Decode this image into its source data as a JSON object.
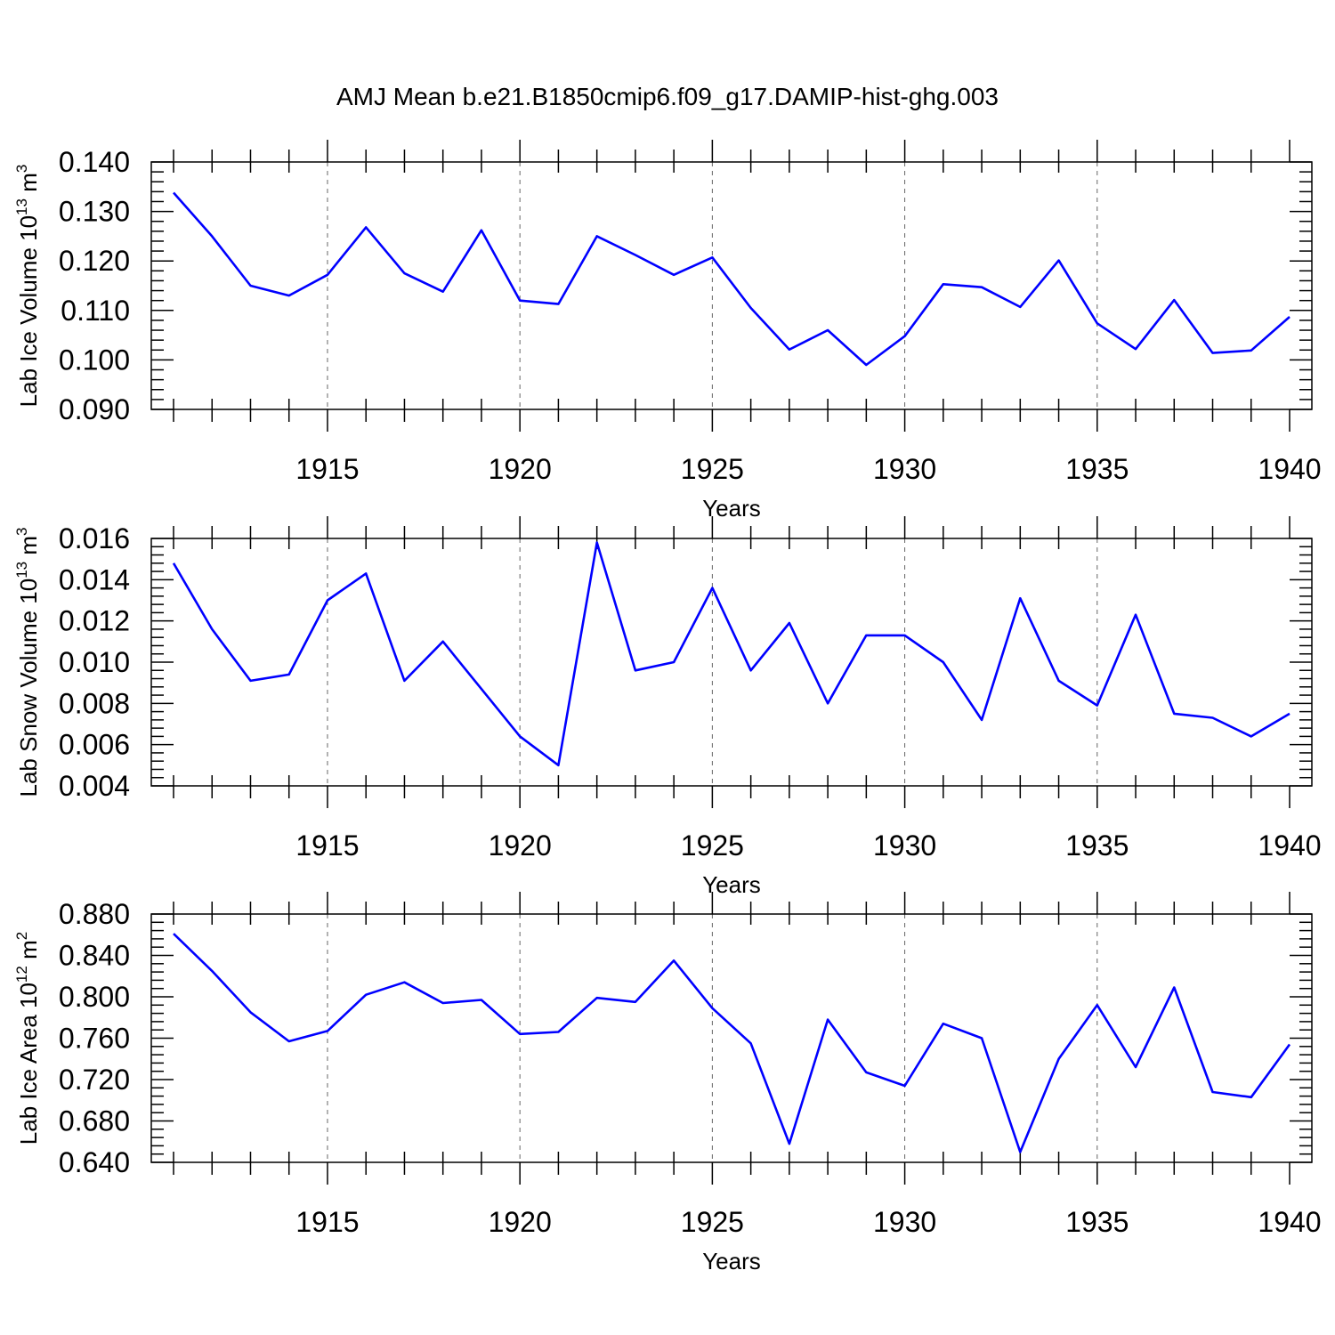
{
  "page_title": "AMJ Mean b.e21.B1850cmip6.f09_g17.DAMIP-hist-ghg.003",
  "colors": {
    "series": "#0000ff"
  },
  "chart_data": [
    {
      "type": "line",
      "xlabel": "Years",
      "ylabel": "Lab Ice Volume 10",
      "ylabel_exp": "13",
      "ylabel_unit": " m",
      "ylabel_unit_exp": "3",
      "xlim": [
        1911,
        1940
      ],
      "xticks": [
        "1915",
        "1920",
        "1925",
        "1930",
        "1935",
        "1940"
      ],
      "ylim": [
        0.09,
        0.14
      ],
      "yticks": [
        "0.090",
        "0.100",
        "0.110",
        "0.120",
        "0.130",
        "0.140"
      ],
      "grid": "dashed vertical at major x ticks",
      "x": [
        1911,
        1912,
        1913,
        1914,
        1915,
        1916,
        1917,
        1918,
        1919,
        1920,
        1921,
        1922,
        1923,
        1924,
        1925,
        1926,
        1927,
        1928,
        1929,
        1930,
        1931,
        1932,
        1933,
        1934,
        1935,
        1936,
        1937,
        1938,
        1939,
        1940
      ],
      "values": [
        0.1338,
        0.125,
        0.115,
        0.113,
        0.1172,
        0.1268,
        0.1175,
        0.1138,
        0.1262,
        0.112,
        0.1113,
        0.125,
        0.1212,
        0.1172,
        0.1207,
        0.1105,
        0.1021,
        0.106,
        0.099,
        0.1048,
        0.1153,
        0.1147,
        0.1107,
        0.1201,
        0.1074,
        0.1022,
        0.1121,
        0.1014,
        0.1019,
        0.1087
      ]
    },
    {
      "type": "line",
      "xlabel": "Years",
      "ylabel": "Lab Snow Volume 10",
      "ylabel_exp": "13",
      "ylabel_unit": " m",
      "ylabel_unit_exp": "3",
      "xlim": [
        1911,
        1940
      ],
      "xticks": [
        "1915",
        "1920",
        "1925",
        "1930",
        "1935",
        "1940"
      ],
      "ylim": [
        0.004,
        0.016
      ],
      "yticks": [
        "0.004",
        "0.006",
        "0.008",
        "0.010",
        "0.012",
        "0.014",
        "0.016"
      ],
      "grid": "dashed vertical at major x ticks",
      "x": [
        1911,
        1912,
        1913,
        1914,
        1915,
        1916,
        1917,
        1918,
        1919,
        1920,
        1921,
        1922,
        1923,
        1924,
        1925,
        1926,
        1927,
        1928,
        1929,
        1930,
        1931,
        1932,
        1933,
        1934,
        1935,
        1936,
        1937,
        1938,
        1939,
        1940
      ],
      "values": [
        0.0148,
        0.0116,
        0.0091,
        0.0094,
        0.013,
        0.0143,
        0.0091,
        0.011,
        0.0087,
        0.0064,
        0.005,
        0.0158,
        0.0096,
        0.01,
        0.0136,
        0.0096,
        0.0119,
        0.008,
        0.0113,
        0.0113,
        0.01,
        0.0072,
        0.0131,
        0.0091,
        0.0079,
        0.0123,
        0.0075,
        0.0073,
        0.0064,
        0.0075
      ]
    },
    {
      "type": "line",
      "xlabel": "Years",
      "ylabel": "Lab Ice Area 10",
      "ylabel_exp": "12",
      "ylabel_unit": " m",
      "ylabel_unit_exp": "2",
      "xlim": [
        1911,
        1940
      ],
      "xticks": [
        "1915",
        "1920",
        "1925",
        "1930",
        "1935",
        "1940"
      ],
      "ylim": [
        0.64,
        0.88
      ],
      "yticks": [
        "0.640",
        "0.680",
        "0.720",
        "0.760",
        "0.800",
        "0.840",
        "0.880"
      ],
      "grid": "dashed vertical at major x ticks",
      "x": [
        1911,
        1912,
        1913,
        1914,
        1915,
        1916,
        1917,
        1918,
        1919,
        1920,
        1921,
        1922,
        1923,
        1924,
        1925,
        1926,
        1927,
        1928,
        1929,
        1930,
        1931,
        1932,
        1933,
        1934,
        1935,
        1936,
        1937,
        1938,
        1939,
        1940
      ],
      "values": [
        0.861,
        0.825,
        0.785,
        0.757,
        0.767,
        0.802,
        0.814,
        0.794,
        0.797,
        0.764,
        0.766,
        0.799,
        0.795,
        0.835,
        0.789,
        0.755,
        0.658,
        0.778,
        0.727,
        0.714,
        0.774,
        0.76,
        0.65,
        0.74,
        0.792,
        0.732,
        0.809,
        0.708,
        0.703,
        0.754
      ]
    }
  ]
}
